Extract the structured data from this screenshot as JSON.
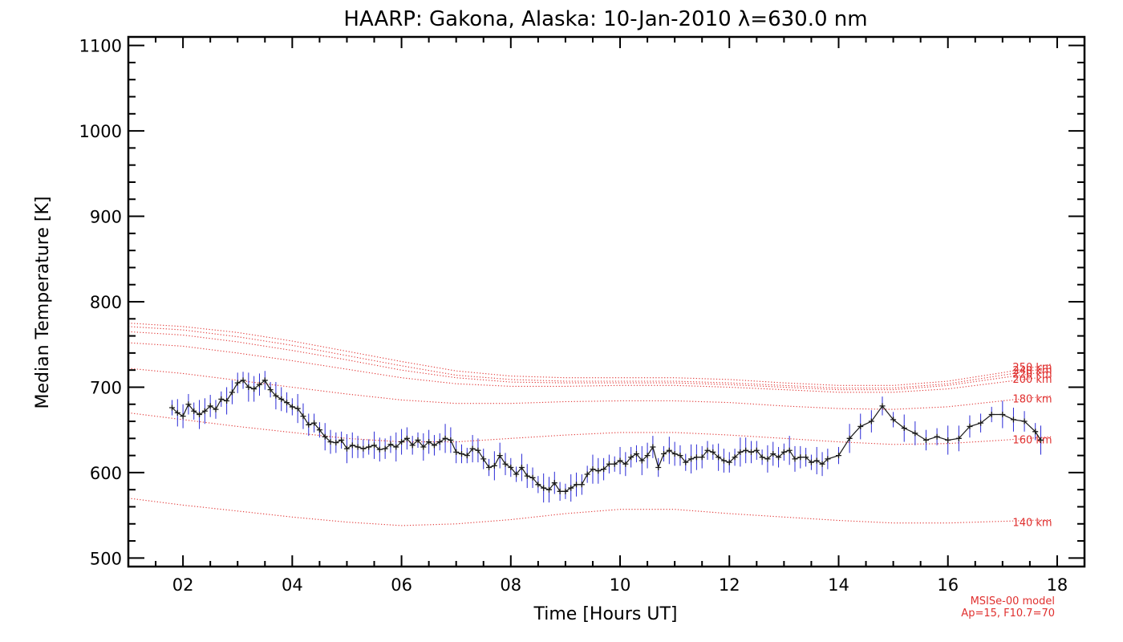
{
  "chart_data": {
    "type": "line",
    "title": "HAARP: Gakona,  Alaska: 10-Jan-2010 λ=630.0 nm",
    "xlabel": "Time [Hours UT]",
    "ylabel": "Median Temperature [K]",
    "xlim": [
      1.0,
      18.5
    ],
    "ylim": [
      490,
      1110
    ],
    "x_ticks": [
      2,
      4,
      6,
      8,
      10,
      12,
      14,
      16,
      18
    ],
    "x_tick_labels": [
      "02",
      "04",
      "06",
      "08",
      "10",
      "12",
      "14",
      "16",
      "18"
    ],
    "y_ticks": [
      500,
      600,
      700,
      800,
      900,
      1000,
      1100
    ],
    "y_tick_labels": [
      "500",
      "600",
      "700",
      "800",
      "900",
      "1000",
      "1100"
    ],
    "grid": false,
    "measured": {
      "color": "#1a1a1a",
      "error_color": "#2a2ad6",
      "points": [
        [
          1.8,
          676
        ],
        [
          1.9,
          670
        ],
        [
          2.0,
          666
        ],
        [
          2.1,
          680
        ],
        [
          2.2,
          672
        ],
        [
          2.3,
          668
        ],
        [
          2.4,
          672
        ],
        [
          2.5,
          678
        ],
        [
          2.6,
          674
        ],
        [
          2.7,
          686
        ],
        [
          2.8,
          684
        ],
        [
          2.9,
          694
        ],
        [
          3.0,
          705
        ],
        [
          3.1,
          708
        ],
        [
          3.2,
          700
        ],
        [
          3.3,
          698
        ],
        [
          3.4,
          703
        ],
        [
          3.5,
          708
        ],
        [
          3.6,
          697
        ],
        [
          3.7,
          690
        ],
        [
          3.8,
          686
        ],
        [
          3.9,
          682
        ],
        [
          4.0,
          677
        ],
        [
          4.1,
          675
        ],
        [
          4.2,
          666
        ],
        [
          4.3,
          656
        ],
        [
          4.4,
          658
        ],
        [
          4.5,
          650
        ],
        [
          4.6,
          642
        ],
        [
          4.7,
          636
        ],
        [
          4.8,
          635
        ],
        [
          4.9,
          638
        ],
        [
          5.0,
          628
        ],
        [
          5.1,
          632
        ],
        [
          5.2,
          630
        ],
        [
          5.3,
          628
        ],
        [
          5.4,
          630
        ],
        [
          5.5,
          632
        ],
        [
          5.6,
          627
        ],
        [
          5.7,
          628
        ],
        [
          5.8,
          633
        ],
        [
          5.9,
          630
        ],
        [
          6.0,
          636
        ],
        [
          6.1,
          640
        ],
        [
          6.2,
          632
        ],
        [
          6.3,
          638
        ],
        [
          6.4,
          630
        ],
        [
          6.5,
          636
        ],
        [
          6.6,
          632
        ],
        [
          6.7,
          636
        ],
        [
          6.8,
          640
        ],
        [
          6.9,
          638
        ],
        [
          7.0,
          624
        ],
        [
          7.1,
          622
        ],
        [
          7.2,
          620
        ],
        [
          7.3,
          628
        ],
        [
          7.4,
          626
        ],
        [
          7.5,
          616
        ],
        [
          7.6,
          606
        ],
        [
          7.7,
          608
        ],
        [
          7.8,
          620
        ],
        [
          7.9,
          610
        ],
        [
          8.0,
          606
        ],
        [
          8.1,
          598
        ],
        [
          8.2,
          606
        ],
        [
          8.3,
          596
        ],
        [
          8.4,
          594
        ],
        [
          8.5,
          586
        ],
        [
          8.6,
          582
        ],
        [
          8.7,
          580
        ],
        [
          8.8,
          588
        ],
        [
          8.9,
          578
        ],
        [
          9.0,
          578
        ],
        [
          9.1,
          582
        ],
        [
          9.2,
          586
        ],
        [
          9.3,
          586
        ],
        [
          9.4,
          598
        ],
        [
          9.5,
          604
        ],
        [
          9.6,
          602
        ],
        [
          9.7,
          604
        ],
        [
          9.8,
          610
        ],
        [
          9.9,
          610
        ],
        [
          10.0,
          614
        ],
        [
          10.1,
          610
        ],
        [
          10.2,
          618
        ],
        [
          10.3,
          622
        ],
        [
          10.4,
          614
        ],
        [
          10.5,
          620
        ],
        [
          10.6,
          630
        ],
        [
          10.7,
          606
        ],
        [
          10.8,
          622
        ],
        [
          10.9,
          626
        ],
        [
          11.0,
          622
        ],
        [
          11.1,
          620
        ],
        [
          11.2,
          612
        ],
        [
          11.3,
          616
        ],
        [
          11.4,
          618
        ],
        [
          11.5,
          618
        ],
        [
          11.6,
          626
        ],
        [
          11.7,
          624
        ],
        [
          11.8,
          618
        ],
        [
          11.9,
          614
        ],
        [
          12.0,
          612
        ],
        [
          12.1,
          618
        ],
        [
          12.2,
          624
        ],
        [
          12.3,
          626
        ],
        [
          12.4,
          624
        ],
        [
          12.5,
          626
        ],
        [
          12.6,
          618
        ],
        [
          12.7,
          616
        ],
        [
          12.8,
          622
        ],
        [
          12.9,
          618
        ],
        [
          13.0,
          624
        ],
        [
          13.1,
          626
        ],
        [
          13.2,
          616
        ],
        [
          13.3,
          618
        ],
        [
          13.4,
          618
        ],
        [
          13.5,
          612
        ],
        [
          13.6,
          614
        ],
        [
          13.7,
          610
        ],
        [
          13.8,
          616
        ],
        [
          14.0,
          620
        ],
        [
          14.2,
          640
        ],
        [
          14.4,
          654
        ],
        [
          14.6,
          660
        ],
        [
          14.8,
          678
        ],
        [
          15.0,
          662
        ],
        [
          15.2,
          652
        ],
        [
          15.4,
          646
        ],
        [
          15.6,
          638
        ],
        [
          15.8,
          642
        ],
        [
          16.0,
          638
        ],
        [
          16.2,
          640
        ],
        [
          16.4,
          654
        ],
        [
          16.6,
          658
        ],
        [
          16.8,
          668
        ],
        [
          17.0,
          668
        ],
        [
          17.2,
          662
        ],
        [
          17.4,
          660
        ],
        [
          17.6,
          648
        ],
        [
          17.7,
          638
        ]
      ]
    },
    "model_curves": {
      "source": "MSISe-00 model",
      "params": "Ap=15, F10.7=70",
      "color": "#e0302f",
      "x": [
        1.0,
        2.0,
        3.0,
        4.0,
        5.0,
        6.0,
        7.0,
        8.0,
        9.0,
        10.0,
        11.0,
        12.0,
        13.0,
        14.0,
        15.0,
        16.0,
        17.0,
        17.9
      ],
      "series": [
        {
          "name": "140 km",
          "values": [
            570,
            562,
            555,
            548,
            542,
            538,
            540,
            545,
            552,
            557,
            557,
            552,
            548,
            544,
            541,
            541,
            543,
            545
          ]
        },
        {
          "name": "160 km",
          "values": [
            670,
            662,
            654,
            647,
            640,
            636,
            636,
            640,
            644,
            647,
            647,
            644,
            640,
            636,
            633,
            634,
            638,
            642
          ]
        },
        {
          "name": "180 km",
          "values": [
            722,
            716,
            708,
            700,
            692,
            685,
            681,
            681,
            683,
            684,
            684,
            682,
            678,
            675,
            674,
            677,
            684,
            690
          ]
        },
        {
          "name": "200 km",
          "values": [
            752,
            748,
            740,
            731,
            721,
            711,
            704,
            701,
            701,
            702,
            702,
            700,
            697,
            694,
            694,
            698,
            706,
            713
          ]
        },
        {
          "name": "220 km",
          "values": [
            765,
            761,
            753,
            743,
            732,
            720,
            711,
            706,
            705,
            705,
            705,
            703,
            700,
            697,
            697,
            702,
            711,
            719
          ]
        },
        {
          "name": "240 km",
          "values": [
            771,
            767,
            759,
            749,
            737,
            725,
            714,
            709,
            707,
            707,
            707,
            705,
            702,
            699,
            699,
            704,
            714,
            723
          ]
        },
        {
          "name": "250 km",
          "values": [
            775,
            771,
            764,
            754,
            742,
            730,
            719,
            713,
            711,
            711,
            711,
            709,
            705,
            702,
            702,
            707,
            717,
            727
          ]
        }
      ]
    }
  }
}
